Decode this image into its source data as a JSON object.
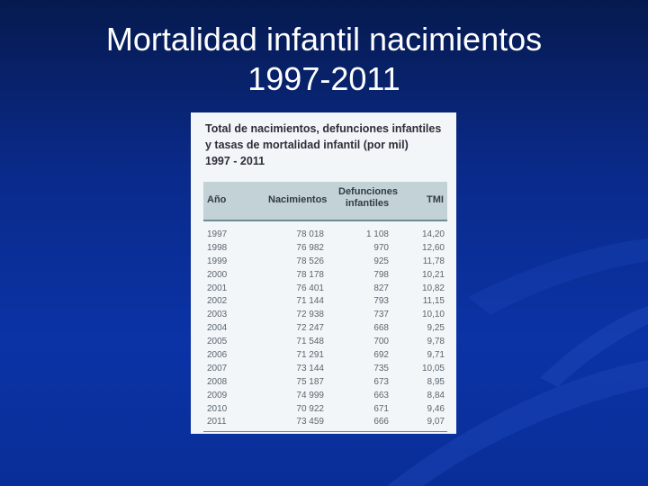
{
  "slide": {
    "title_line1": "Mortalidad infantil nacimientos",
    "title_line2": "1997-2011"
  },
  "table": {
    "caption_line1": "Total de nacimientos, defunciones infantiles",
    "caption_line2": "y tasas de mortalidad infantil (por mil)",
    "caption_line3": "1997 - 2011",
    "headers": {
      "year": "Año",
      "births": "Nacimientos",
      "deaths_line1": "Defunciones",
      "deaths_line2": "infantiles",
      "rate": "TMI"
    },
    "rows": [
      [
        "1997",
        "78 018",
        "1 108",
        "14,20"
      ],
      [
        "1998",
        "76 982",
        "970",
        "12,60"
      ],
      [
        "1999",
        "78 526",
        "925",
        "11,78"
      ],
      [
        "2000",
        "78 178",
        "798",
        "10,21"
      ],
      [
        "2001",
        "76 401",
        "827",
        "10,82"
      ],
      [
        "2002",
        "71 144",
        "793",
        "11,15"
      ],
      [
        "2003",
        "72 938",
        "737",
        "10,10"
      ],
      [
        "2004",
        "72 247",
        "668",
        "9,25"
      ],
      [
        "2005",
        "71 548",
        "700",
        "9,78"
      ],
      [
        "2006",
        "71 291",
        "692",
        "9,71"
      ],
      [
        "2007",
        "73 144",
        "735",
        "10,05"
      ],
      [
        "2008",
        "75 187",
        "673",
        "8,95"
      ],
      [
        "2009",
        "74 999",
        "663",
        "8,84"
      ],
      [
        "2010",
        "70 922",
        "671",
        "9,46"
      ],
      [
        "2011",
        "73 459",
        "666",
        "9,07"
      ]
    ]
  }
}
